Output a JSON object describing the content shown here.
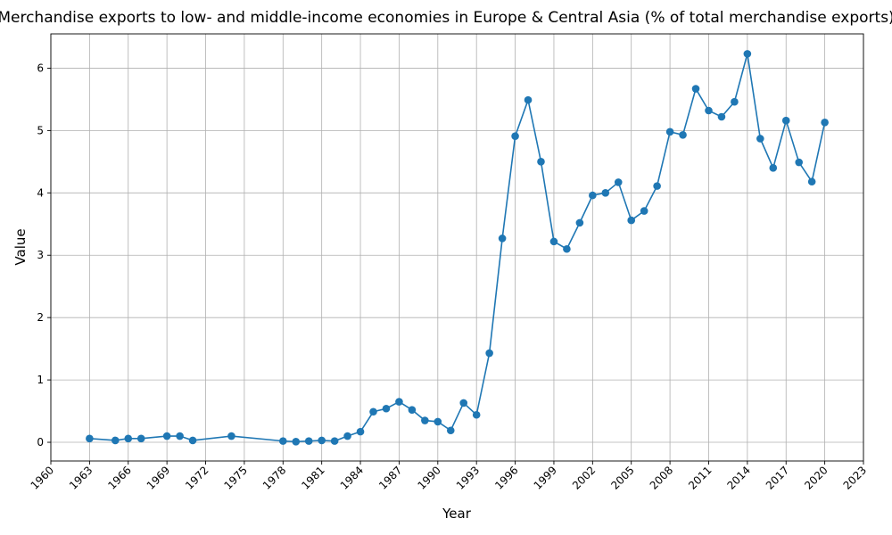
{
  "chart_data": {
    "type": "line",
    "title": "Merchandise exports to low- and middle-income economies in Europe & Central Asia (% of total merchandise exports)",
    "xlabel": "Year",
    "ylabel": "Value",
    "xlim": [
      1960,
      2023
    ],
    "ylim": [
      -0.3,
      6.55
    ],
    "xticks": [
      1960,
      1963,
      1966,
      1969,
      1972,
      1975,
      1978,
      1981,
      1984,
      1987,
      1990,
      1993,
      1996,
      1999,
      2002,
      2005,
      2008,
      2011,
      2014,
      2017,
      2020,
      2023
    ],
    "yticks": [
      0,
      1,
      2,
      3,
      4,
      5,
      6
    ],
    "grid": true,
    "color": "#1f77b4",
    "series": [
      {
        "x": [
          1963,
          1965,
          1966,
          1967,
          1969,
          1970,
          1971,
          1974,
          1978,
          1979,
          1980,
          1981,
          1982,
          1983,
          1984,
          1985,
          1986,
          1987,
          1988,
          1989,
          1990,
          1991,
          1992,
          1993,
          1994,
          1995,
          1996,
          1997,
          1998,
          1999,
          2000,
          2001,
          2002,
          2003,
          2004,
          2005,
          2006,
          2007,
          2008,
          2009,
          2010,
          2011,
          2012,
          2013,
          2014,
          2015,
          2016,
          2017,
          2018,
          2019,
          2020
        ],
        "values": [
          0.06,
          0.03,
          0.06,
          0.06,
          0.1,
          0.1,
          0.03,
          0.1,
          0.02,
          0.01,
          0.02,
          0.03,
          0.02,
          0.1,
          0.17,
          0.49,
          0.54,
          0.65,
          0.52,
          0.35,
          0.33,
          0.19,
          0.63,
          0.44,
          1.43,
          3.27,
          4.91,
          5.49,
          4.5,
          3.22,
          3.1,
          3.52,
          3.96,
          4.0,
          4.17,
          3.56,
          3.71,
          4.11,
          4.98,
          4.93,
          5.67,
          5.32,
          5.22,
          5.46,
          6.23,
          4.87,
          4.4,
          5.16,
          4.49,
          4.18,
          5.13
        ]
      }
    ]
  }
}
